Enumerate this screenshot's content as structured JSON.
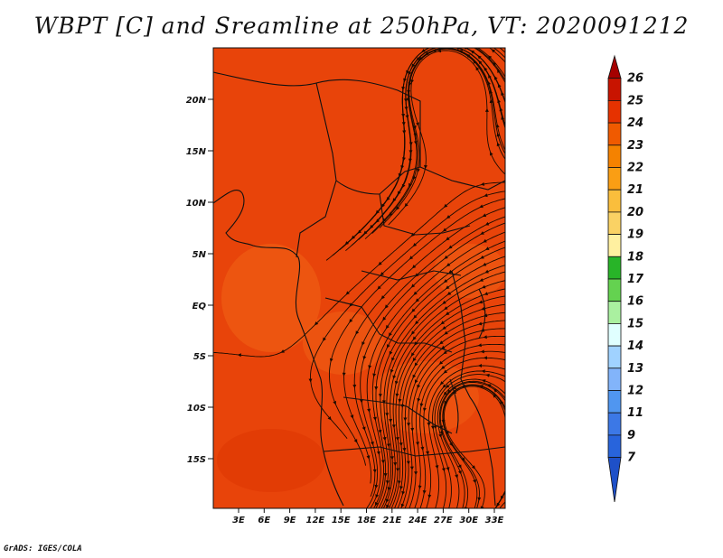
{
  "title": "WBPT [C] and Sreamline at 250hPa, VT: 2020091212",
  "credit": "GrADS: IGES/COLA",
  "y_ticks": [
    "20N",
    "15N",
    "10N",
    "5N",
    "EQ",
    "5S",
    "10S",
    "15S"
  ],
  "x_ticks": [
    "3E",
    "6E",
    "9E",
    "12E",
    "15E",
    "18E",
    "21E",
    "24E",
    "27E",
    "30E",
    "33E"
  ],
  "colorbar": {
    "labels": [
      "26",
      "25",
      "24",
      "23",
      "22",
      "21",
      "20",
      "19",
      "18",
      "17",
      "16",
      "15",
      "14",
      "13",
      "12",
      "11",
      "9",
      "7"
    ],
    "colors": [
      "#a50000",
      "#c81400",
      "#e63200",
      "#f05a00",
      "#f58200",
      "#fa9e14",
      "#fabe3c",
      "#fad264",
      "#fff0a0",
      "#28b428",
      "#64d250",
      "#aaf0a0",
      "#e0ffff",
      "#a0d2ff",
      "#82b4fa",
      "#5096f0",
      "#3c78e6",
      "#2864dc",
      "#1e50c8"
    ]
  },
  "colors": {
    "field_main": "#e8440a",
    "field_light": "#ee5a12",
    "field_dark": "#dc3400",
    "lines": "#1a0a00"
  }
}
